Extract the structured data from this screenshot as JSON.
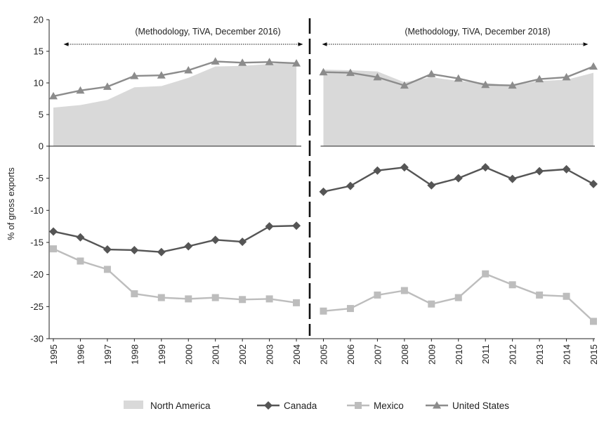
{
  "chart_data": {
    "type": "line",
    "title": "",
    "xlabel": "",
    "ylabel": "% of gross exports",
    "ylim": [
      -30,
      20
    ],
    "yticks": [
      20,
      15,
      10,
      5,
      0,
      -5,
      -10,
      -15,
      -20,
      -25,
      -30
    ],
    "x": [
      "1995",
      "1996",
      "1997",
      "1998",
      "1999",
      "2000",
      "2001",
      "2002",
      "2003",
      "2004",
      "2005",
      "2006",
      "2007",
      "2008",
      "2009",
      "2010",
      "2011",
      "2012",
      "2013",
      "2014",
      "2015"
    ],
    "segments": [
      {
        "label": "(Methodology, TiVA, December 2016)",
        "from": "1995",
        "to": "2004"
      },
      {
        "label": "(Methodology, TiVA, December 2018)",
        "from": "2005",
        "to": "2015"
      }
    ],
    "series": [
      {
        "name": "North America",
        "kind": "area",
        "color": "#d9d9d9",
        "values": [
          6.1,
          6.5,
          7.3,
          9.3,
          9.5,
          10.8,
          12.6,
          12.7,
          13.0,
          13.3,
          12.1,
          12.0,
          11.8,
          10.1,
          10.9,
          10.3,
          10.0,
          9.6,
          10.3,
          10.5,
          11.6
        ]
      },
      {
        "name": "Canada",
        "kind": "line",
        "marker": "diamond",
        "color": "#555555",
        "values": [
          -13.3,
          -14.2,
          -16.1,
          -16.2,
          -16.5,
          -15.6,
          -14.6,
          -14.9,
          -12.5,
          -12.4,
          -7.1,
          -6.2,
          -3.8,
          -3.3,
          -6.1,
          -5.0,
          -3.3,
          -5.1,
          -3.9,
          -3.6,
          -5.9
        ]
      },
      {
        "name": "Mexico",
        "kind": "line",
        "marker": "square",
        "color": "#bdbdbd",
        "values": [
          -16.0,
          -17.9,
          -19.2,
          -23.0,
          -23.6,
          -23.8,
          -23.6,
          -23.9,
          -23.8,
          -24.4,
          -25.7,
          -25.3,
          -23.2,
          -22.5,
          -24.6,
          -23.6,
          -19.9,
          -21.6,
          -23.2,
          -23.4,
          -27.3
        ]
      },
      {
        "name": "United States",
        "kind": "line",
        "marker": "triangle",
        "color": "#8c8c8c",
        "values": [
          7.9,
          8.8,
          9.4,
          11.1,
          11.2,
          12.0,
          13.4,
          13.2,
          13.3,
          13.1,
          11.7,
          11.6,
          10.9,
          9.6,
          11.4,
          10.7,
          9.7,
          9.6,
          10.6,
          10.9,
          12.6
        ]
      }
    ],
    "legend": [
      "North America",
      "Canada",
      "Mexico",
      "United States"
    ],
    "legend_position": "bottom"
  }
}
